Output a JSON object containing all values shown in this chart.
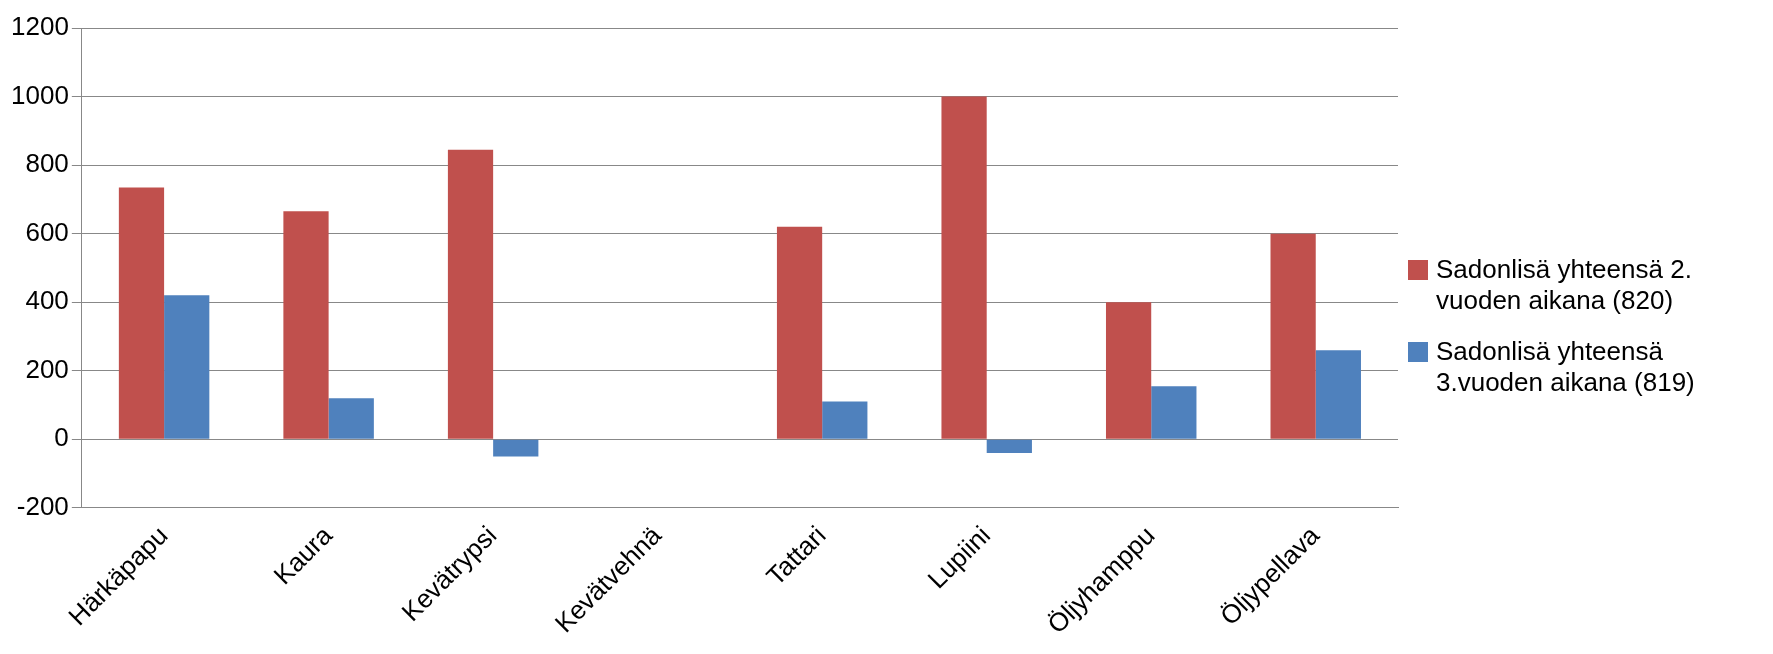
{
  "chart_data": {
    "type": "bar",
    "categories": [
      "Härkäpapu",
      "Kaura",
      "Kevätrypsi",
      "Kevätvehnä",
      "Tattari",
      "Lupiini",
      "Öljyhamppu",
      "Öljypellava"
    ],
    "series": [
      {
        "name": "Sadonlisä yhteensä 2. vuoden aikana (820)",
        "color": "#c0504d",
        "values": [
          735,
          665,
          845,
          null,
          620,
          1000,
          400,
          600
        ]
      },
      {
        "name": "Sadonlisä yhteensä 3.vuoden aikana (819)",
        "color": "#4f81bd",
        "values": [
          420,
          120,
          -50,
          null,
          110,
          -40,
          155,
          260
        ]
      }
    ],
    "ylim": [
      -200,
      1200
    ],
    "yticks": [
      -200,
      0,
      200,
      400,
      600,
      800,
      1000,
      1200
    ],
    "grid": "y",
    "legend": "right"
  }
}
